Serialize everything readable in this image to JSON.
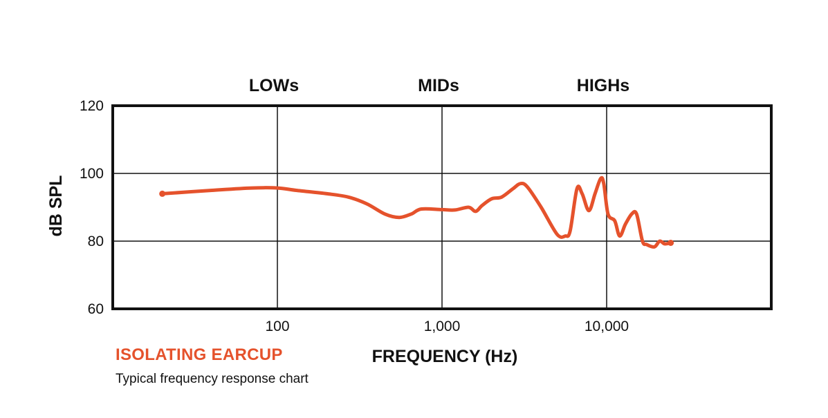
{
  "colors": {
    "series": "#e5522c",
    "frame": "#111111",
    "grid": "#111111",
    "background": "#ffffff"
  },
  "series_label": "ISOLATING EARCUP",
  "caption": "Typical frequency response chart",
  "chart_data": {
    "type": "line",
    "xscale": "log",
    "xlim": [
      10,
      100000
    ],
    "ylim": [
      60,
      120
    ],
    "xlabel": "FREQUENCY (Hz)",
    "ylabel": "dB SPL",
    "title": "",
    "grid": true,
    "xticks": [
      {
        "value": 100,
        "label": "100"
      },
      {
        "value": 1000,
        "label": "1,000"
      },
      {
        "value": 10000,
        "label": "10,000"
      }
    ],
    "yticks": [
      {
        "value": 60,
        "label": "60"
      },
      {
        "value": 80,
        "label": "80"
      },
      {
        "value": 100,
        "label": "100"
      },
      {
        "value": 120,
        "label": "120"
      }
    ],
    "bands": [
      {
        "label": "LOWs",
        "center": 100
      },
      {
        "label": "MIDs",
        "center": 1000
      },
      {
        "label": "HIGHs",
        "center": 10000
      }
    ],
    "series": [
      {
        "name": "ISOLATING EARCUP",
        "x": [
          20,
          40,
          70,
          100,
          130,
          200,
          270,
          350,
          450,
          550,
          650,
          750,
          1000,
          1200,
          1450,
          1600,
          1750,
          2000,
          2300,
          2700,
          3000,
          3300,
          4000,
          5000,
          5600,
          6000,
          6600,
          7100,
          7800,
          8500,
          9200,
          9600,
          10200,
          11200,
          12000,
          13000,
          14200,
          15200,
          16500,
          17500,
          19500,
          21000,
          22500,
          24500
        ],
        "values": [
          94,
          95,
          95.7,
          95.7,
          95,
          94,
          93,
          91,
          88,
          87,
          88,
          89.5,
          89.3,
          89.2,
          90,
          88.8,
          90.5,
          92.5,
          93,
          95.5,
          97,
          96,
          90,
          82,
          81.5,
          83,
          95.5,
          94,
          89,
          94,
          98.5,
          97,
          88,
          86,
          81.5,
          85,
          88,
          88,
          80,
          79,
          78.3,
          80,
          79.2,
          79.5
        ]
      }
    ]
  }
}
